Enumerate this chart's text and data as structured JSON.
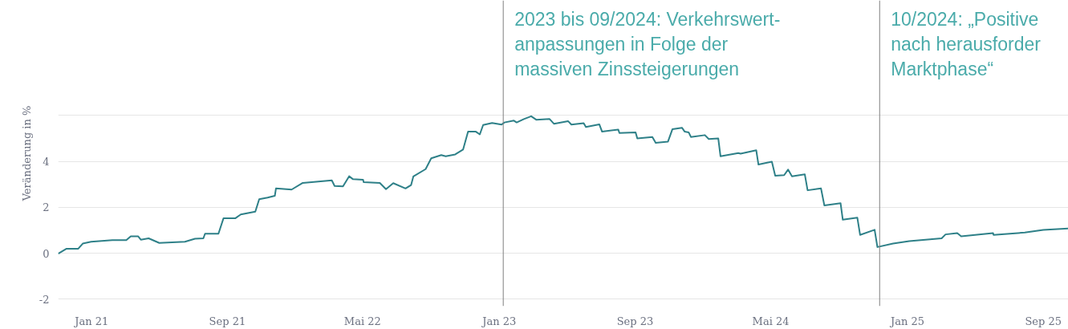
{
  "chart_data": {
    "type": "line",
    "ylabel": "Veränderung in %",
    "xlim": [
      "2020-11-02",
      "2025-10-16"
    ],
    "ylim": [
      -2.3,
      11
    ],
    "xticks": [
      {
        "value": "2021-01-01",
        "label": "Jan 21"
      },
      {
        "value": "2021-09-01",
        "label": "Sep 21"
      },
      {
        "value": "2022-05-01",
        "label": "Mai 22"
      },
      {
        "value": "2023-01-01",
        "label": "Jan 23"
      },
      {
        "value": "2023-09-01",
        "label": "Sep 23"
      },
      {
        "value": "2024-05-01",
        "label": "Mai 24"
      },
      {
        "value": "2025-01-01",
        "label": "Jan 25"
      },
      {
        "value": "2025-09-01",
        "label": "Sep 25"
      }
    ],
    "yticks": [
      -2,
      0,
      2,
      4,
      {
        "value": 6,
        "label": null
      }
    ],
    "grid": "y",
    "line_style": "solid",
    "ref_lines": [
      {
        "axis": "x",
        "value": "2023-01-08",
        "label": "2023 bis 09/2024: Verkehrswert-\nanpassungen in Folge der\nmassiven Zinssteigerungen",
        "color": "#7f7f7f"
      },
      {
        "axis": "x",
        "value": "2024-11-12",
        "label": "10/2024: „Positive\nnach herausforder\nMarktphase“",
        "color": "#7f7f7f"
      }
    ],
    "series": [
      {
        "color": "#2e8088",
        "x": [
          "2020-11-02",
          "2020-11-17",
          "2020-12-08",
          "2020-12-16",
          "2020-12-31",
          "2021-02-07",
          "2021-03-04",
          "2021-03-12",
          "2021-03-25",
          "2021-03-30",
          "2021-04-13",
          "2021-05-02",
          "2021-06-17",
          "2021-07-05",
          "2021-07-20",
          "2021-07-23",
          "2021-08-16",
          "2021-08-25",
          "2021-09-15",
          "2021-09-25",
          "2021-10-21",
          "2021-10-28",
          "2021-11-12",
          "2021-11-25",
          "2021-11-27",
          "2021-12-25",
          "2022-01-14",
          "2022-03-07",
          "2022-03-12",
          "2022-03-27",
          "2022-04-07",
          "2022-04-14",
          "2022-05-02",
          "2022-05-03",
          "2022-06-01",
          "2022-06-12",
          "2022-06-25",
          "2022-07-17",
          "2022-07-27",
          "2022-07-31",
          "2022-08-22",
          "2022-09-01",
          "2022-09-19",
          "2022-09-27",
          "2022-10-14",
          "2022-10-28",
          "2022-11-06",
          "2022-11-20",
          "2022-11-27",
          "2022-12-03",
          "2022-12-19",
          "2023-01-05",
          "2023-01-10",
          "2023-01-27",
          "2023-02-01",
          "2023-02-14",
          "2023-02-27",
          "2023-03-08",
          "2023-04-01",
          "2023-04-09",
          "2023-05-04",
          "2023-05-10",
          "2023-06-01",
          "2023-06-05",
          "2023-06-29",
          "2023-07-04",
          "2023-08-02",
          "2023-08-04",
          "2023-09-02",
          "2023-09-05",
          "2023-10-02",
          "2023-10-08",
          "2023-10-30",
          "2023-11-07",
          "2023-11-24",
          "2023-11-29",
          "2023-12-06",
          "2023-12-10",
          "2024-01-04",
          "2024-01-11",
          "2024-01-28",
          "2024-02-01",
          "2024-03-04",
          "2024-03-08",
          "2024-04-05",
          "2024-04-09",
          "2024-05-03",
          "2024-05-09",
          "2024-05-25",
          "2024-06-01",
          "2024-06-08",
          "2024-07-01",
          "2024-07-06",
          "2024-07-30",
          "2024-08-05",
          "2024-09-03",
          "2024-09-07",
          "2024-10-03",
          "2024-10-08",
          "2024-11-03",
          "2024-11-08",
          "2024-12-06",
          "2025-01-04",
          "2025-02-02",
          "2025-03-03",
          "2025-03-10",
          "2025-03-31",
          "2025-04-07",
          "2025-06-03",
          "2025-06-04",
          "2025-07-30",
          "2025-09-01",
          "2025-10-16"
        ],
        "values": [
          -0.02,
          0.2,
          0.2,
          0.42,
          0.5,
          0.57,
          0.57,
          0.74,
          0.74,
          0.59,
          0.65,
          0.45,
          0.5,
          0.63,
          0.65,
          0.85,
          0.85,
          1.52,
          1.52,
          1.69,
          1.81,
          2.35,
          2.42,
          2.5,
          2.82,
          2.77,
          3.06,
          3.17,
          2.93,
          2.91,
          3.35,
          3.22,
          3.2,
          3.09,
          3.06,
          2.79,
          3.05,
          2.82,
          2.97,
          3.34,
          3.66,
          4.13,
          4.27,
          4.22,
          4.3,
          4.51,
          5.29,
          5.29,
          5.17,
          5.58,
          5.67,
          5.6,
          5.69,
          5.77,
          5.69,
          5.84,
          5.96,
          5.81,
          5.84,
          5.63,
          5.75,
          5.6,
          5.66,
          5.49,
          5.61,
          5.29,
          5.38,
          5.23,
          5.26,
          5.0,
          5.06,
          4.8,
          4.86,
          5.4,
          5.46,
          5.29,
          5.26,
          5.06,
          5.14,
          4.97,
          5.0,
          4.22,
          4.36,
          4.33,
          4.48,
          3.86,
          3.98,
          3.37,
          3.4,
          3.64,
          3.35,
          3.43,
          2.74,
          2.82,
          2.08,
          2.18,
          1.46,
          1.55,
          0.8,
          1.02,
          0.27,
          0.42,
          0.53,
          0.59,
          0.65,
          0.82,
          0.88,
          0.74,
          0.88,
          0.8,
          0.9,
          1.02,
          1.08
        ]
      }
    ]
  }
}
